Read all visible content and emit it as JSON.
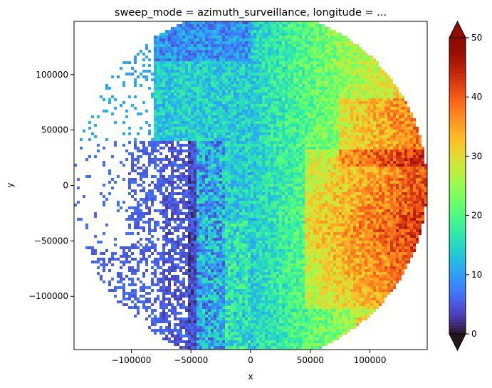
{
  "chart_data": {
    "type": "heatmap",
    "title": "sweep_mode = azimuth_surveillance, longitude = ...",
    "xlabel": "x",
    "ylabel": "y",
    "xlim": [
      -148000,
      148000
    ],
    "ylim": [
      -148000,
      148000
    ],
    "x_ticks": [
      -100000,
      -50000,
      0,
      50000,
      100000
    ],
    "x_tick_labels": [
      "−100000",
      "−50000",
      "0",
      "50000",
      "100000"
    ],
    "y_ticks": [
      100000,
      50000,
      0,
      -50000,
      -100000
    ],
    "y_tick_labels": [
      "100000",
      "50000",
      "0",
      "−50000",
      "−100000"
    ],
    "colorbar": {
      "vmin": 0,
      "vmax": 50,
      "ticks": [
        0,
        10,
        20,
        30,
        40,
        50
      ],
      "tick_labels": [
        "0",
        "10",
        "20",
        "30",
        "40",
        "50"
      ],
      "extend": "both",
      "colormap": "turbo"
    },
    "field": {
      "shape": "disk",
      "radius": 148000,
      "description_values": {
        "west_dry_region": 2,
        "central_band": 20,
        "east_max_region": 42
      }
    },
    "grid": false
  }
}
